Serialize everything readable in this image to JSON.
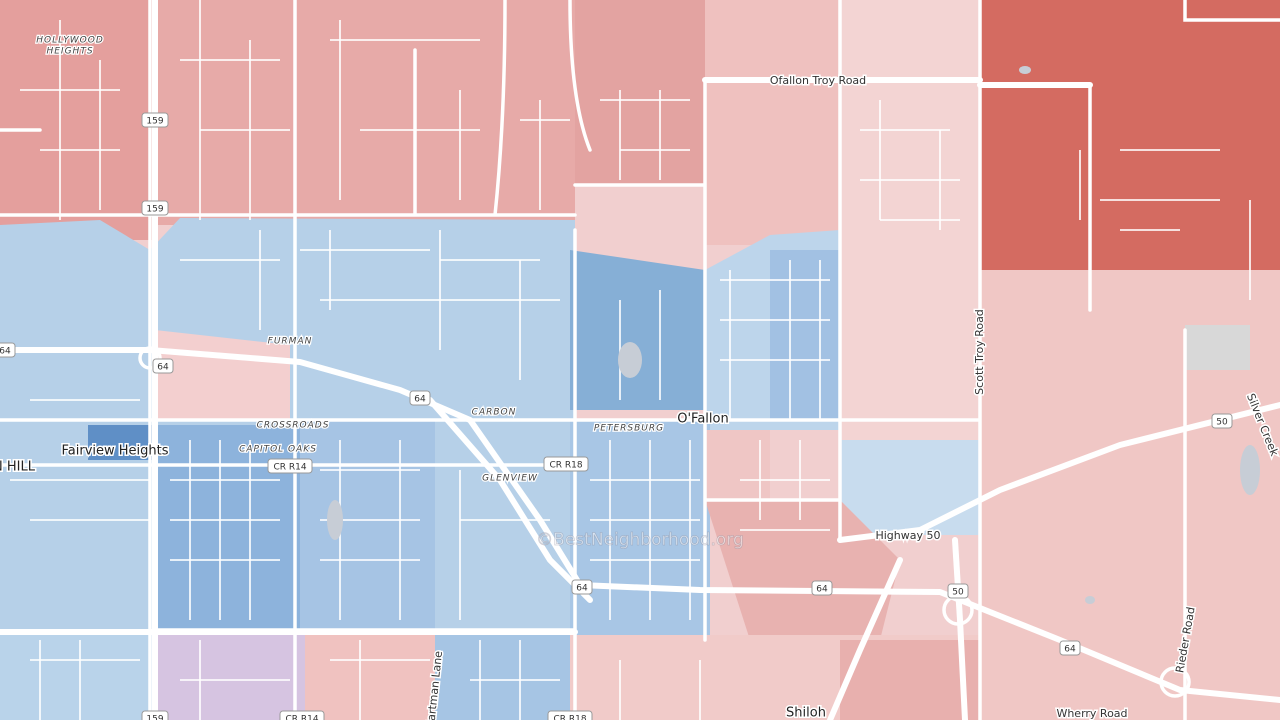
{
  "map": {
    "neighborhoods": [
      "HOLLYWOOD",
      "HEIGHTS",
      "FURMAN",
      "CARBON",
      "CROSSROADS",
      "CAPITOL OAKS",
      "PETERSBURG",
      "GLENVIEW"
    ],
    "places": [
      "O'Fallon",
      "Fairview Heights",
      "N HILL",
      "Shiloh"
    ],
    "roads": [
      "Ofallon Troy Road",
      "Highway 50",
      "Wherry Road",
      "Scott Troy Road",
      "Rieder Road",
      "Hartman Lane",
      "Silver Creek"
    ],
    "shields": [
      "159",
      "159",
      "159",
      "64",
      "64",
      "64",
      "64",
      "64",
      "64",
      "50",
      "50",
      "CR R14",
      "CR R14",
      "CR R18",
      "CR R18"
    ],
    "watermark": "©BestNeighborhood.org"
  }
}
